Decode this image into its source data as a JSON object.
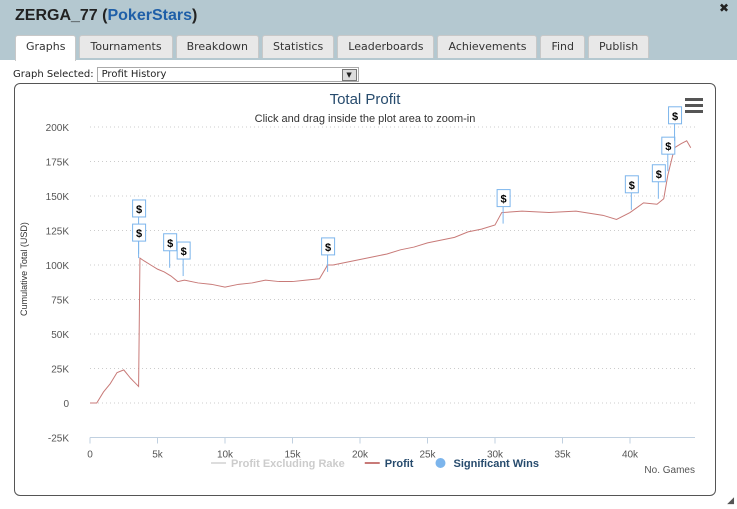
{
  "header": {
    "player": "ZERGA_77",
    "site": "PokerStars",
    "close_icon": "close-icon"
  },
  "tabs": [
    "Graphs",
    "Tournaments",
    "Breakdown",
    "Statistics",
    "Leaderboards",
    "Achievements",
    "Find",
    "Publish"
  ],
  "graph_selector": {
    "label": "Graph Selected:",
    "value": "Profit History"
  },
  "chart_data": {
    "type": "line",
    "title": "Total Profit",
    "subtitle": "Click and drag inside the plot area to zoom-in",
    "xlabel": "No. Games",
    "ylabel": "Cumulative Total (USD)",
    "xlim": [
      0,
      45000
    ],
    "ylim": [
      -25000,
      200000
    ],
    "xticks": [
      0,
      5000,
      10000,
      15000,
      20000,
      25000,
      30000,
      35000,
      40000
    ],
    "xtick_labels": [
      "0",
      "5k",
      "10k",
      "15k",
      "20k",
      "25k",
      "30k",
      "35k",
      "40k"
    ],
    "yticks": [
      -25000,
      0,
      25000,
      50000,
      75000,
      100000,
      125000,
      150000,
      175000,
      200000
    ],
    "ytick_labels": [
      "-25K",
      "0",
      "25K",
      "50K",
      "75K",
      "100K",
      "125K",
      "150K",
      "175K",
      "200K"
    ],
    "legend": [
      "Profit Excluding Rake",
      "Profit",
      "Significant Wins"
    ],
    "legend_placement": "bottom",
    "series": [
      {
        "name": "Profit",
        "color": "#c87a78",
        "x": [
          0,
          500,
          1000,
          1500,
          2000,
          2500,
          3000,
          3300,
          3600,
          3700,
          4000,
          4500,
          5000,
          5500,
          6000,
          6500,
          7000,
          8000,
          9000,
          10000,
          11000,
          12000,
          13000,
          14000,
          15000,
          16000,
          17000,
          17600,
          18000,
          19000,
          20000,
          21000,
          22000,
          23000,
          24000,
          25000,
          26000,
          27000,
          28000,
          29000,
          30000,
          30500,
          32000,
          34000,
          36000,
          38000,
          39000,
          40000,
          41000,
          42000,
          42500,
          42800,
          43300,
          43800,
          44200,
          44500
        ],
        "y": [
          0,
          0,
          8000,
          14000,
          22000,
          24000,
          18000,
          15000,
          12000,
          105000,
          103000,
          100000,
          97000,
          95000,
          92000,
          88000,
          89000,
          87000,
          86000,
          84000,
          86000,
          87000,
          89000,
          88000,
          88000,
          89000,
          90000,
          100000,
          100000,
          102000,
          104000,
          106000,
          108000,
          111000,
          113000,
          116000,
          118000,
          120000,
          124000,
          126000,
          129000,
          138000,
          139000,
          138000,
          139000,
          136000,
          133000,
          138000,
          145000,
          144000,
          148000,
          165000,
          185000,
          188000,
          190000,
          185000
        ]
      }
    ],
    "significant_wins": {
      "color": "#7cb5ec",
      "label": "$",
      "x": [
        3600,
        3600,
        5900,
        6900,
        17600,
        30600,
        40100,
        42100,
        42800,
        43300
      ],
      "y": [
        108000,
        105000,
        98000,
        92000,
        95000,
        130000,
        140000,
        148000,
        168000,
        190000
      ]
    }
  }
}
